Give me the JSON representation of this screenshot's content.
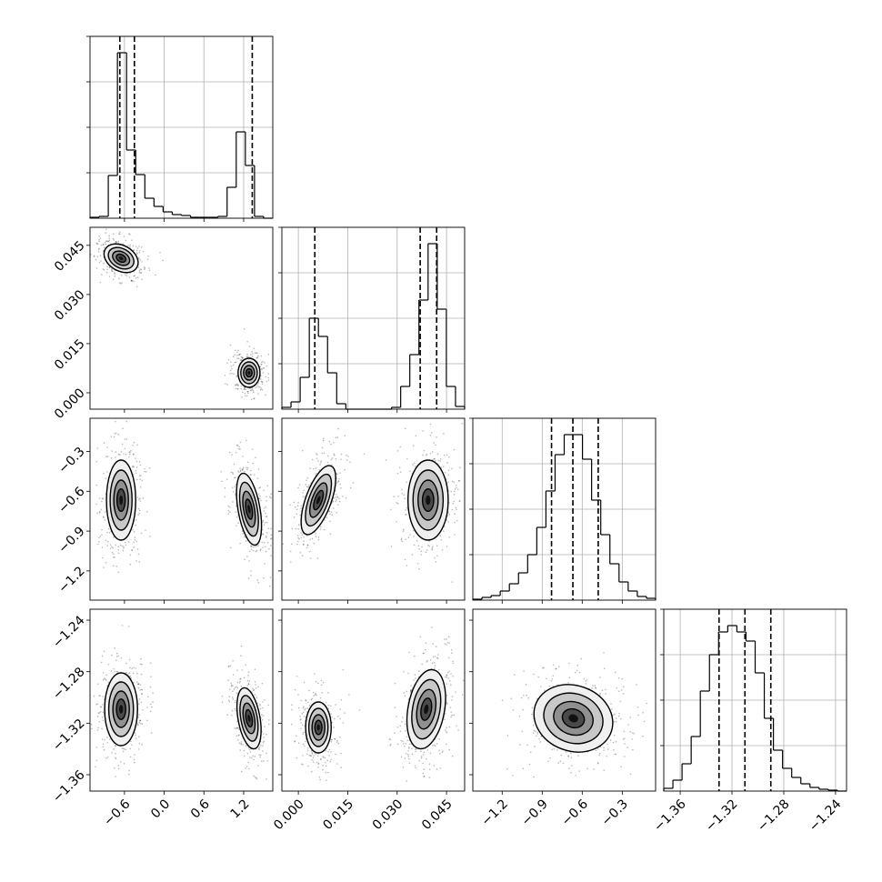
{
  "chart_data": {
    "type": "corner",
    "variables": [
      {
        "lim": [
          -1.12,
          1.64
        ],
        "ticks": [
          {
            "value": -0.6,
            "label": "−0.6"
          },
          {
            "value": 0,
            "label": "0.0"
          },
          0.6,
          1.2
        ],
        "quantiles": [
          -0.67,
          -0.45,
          1.33
        ],
        "hist": {
          "bins": [
            -1.12,
            -0.982,
            -0.844,
            -0.706,
            -0.568,
            -0.43,
            -0.292,
            -0.154,
            -0.016,
            0.122,
            0.26,
            0.398,
            0.536,
            0.674,
            0.812,
            0.95,
            1.088,
            1.226,
            1.364,
            1.502,
            1.64
          ],
          "values": [
            1,
            2,
            47,
            182,
            75,
            48,
            22,
            13,
            7,
            4,
            3,
            1,
            1,
            1,
            2,
            34,
            95,
            58,
            2,
            0
          ],
          "ylim": [
            0,
            200
          ],
          "yticks": [
            50,
            100,
            150,
            200
          ]
        }
      },
      {
        "lim": [
          -0.005,
          0.0505
        ],
        "ticks": [
          {
            "value": 0,
            "label": "0.000"
          },
          0.015,
          {
            "value": 0.03,
            "label": "0.030"
          },
          0.045
        ],
        "quantiles": [
          0.005,
          0.037,
          0.042
        ],
        "hist": {
          "bins": [
            -0.005,
            -0.002225,
            0.00055,
            0.003325,
            0.0061,
            0.008875,
            0.01165,
            0.014425,
            0.0172,
            0.019975,
            0.02275,
            0.025525,
            0.0283,
            0.031075,
            0.03385,
            0.036625,
            0.0394,
            0.042175,
            0.04495,
            0.047725,
            0.0505
          ],
          "values": [
            2,
            8,
            35,
            100,
            80,
            40,
            6,
            0,
            0,
            0,
            0,
            0,
            2,
            25,
            60,
            120,
            182,
            110,
            25,
            3
          ],
          "ylim": [
            0,
            200
          ],
          "yticks": [
            50,
            100,
            150,
            200
          ]
        }
      },
      {
        "lim": [
          -1.42,
          -0.05
        ],
        "ticks": [
          {
            "value": -1.2,
            "label": "−1.2"
          },
          {
            "value": -0.9,
            "label": "−0.9"
          },
          {
            "value": -0.6,
            "label": "−0.6"
          },
          {
            "value": -0.3,
            "label": "−0.3"
          }
        ],
        "quantiles": [
          -0.83,
          -0.67,
          -0.48
        ],
        "hist": {
          "bins": [
            -1.42,
            -1.3515,
            -1.283,
            -1.2145,
            -1.146,
            -1.0775,
            -1.009,
            -0.9405,
            -0.872,
            -0.8035,
            -0.735,
            -0.6665,
            -0.598,
            -0.5295,
            -0.461,
            -0.3925,
            -0.324,
            -0.2555,
            -0.187,
            -0.1185,
            -0.05
          ],
          "values": [
            1,
            3,
            5,
            10,
            18,
            30,
            50,
            80,
            120,
            160,
            182,
            182,
            155,
            110,
            72,
            40,
            20,
            10,
            4,
            2
          ],
          "ylim": [
            0,
            200
          ],
          "yticks": [
            50,
            100,
            150,
            200
          ]
        }
      },
      {
        "lim": [
          -1.3727,
          -1.2315
        ],
        "ticks": [
          {
            "value": -1.36,
            "label": "−1.36"
          },
          {
            "value": -1.32,
            "label": "−1.32"
          },
          {
            "value": -1.28,
            "label": "−1.28"
          },
          {
            "value": -1.24,
            "label": "−1.24"
          }
        ],
        "quantiles": [
          -1.33,
          -1.31,
          -1.29
        ],
        "hist": {
          "bins": [
            -1.3727,
            -1.36564,
            -1.35858,
            -1.35152,
            -1.34446,
            -1.3374,
            -1.33034,
            -1.32328,
            -1.31622,
            -1.30916,
            -1.3021,
            -1.29504,
            -1.28798,
            -1.28092,
            -1.27386,
            -1.2668,
            -1.25974,
            -1.25268,
            -1.24562,
            -1.23856,
            -1.2315
          ],
          "values": [
            3,
            12,
            30,
            60,
            110,
            150,
            175,
            182,
            175,
            165,
            130,
            80,
            45,
            25,
            15,
            8,
            4,
            2,
            1,
            0
          ],
          "ylim": [
            0,
            200
          ],
          "yticks": [
            50,
            100,
            150,
            200
          ]
        }
      }
    ]
  }
}
